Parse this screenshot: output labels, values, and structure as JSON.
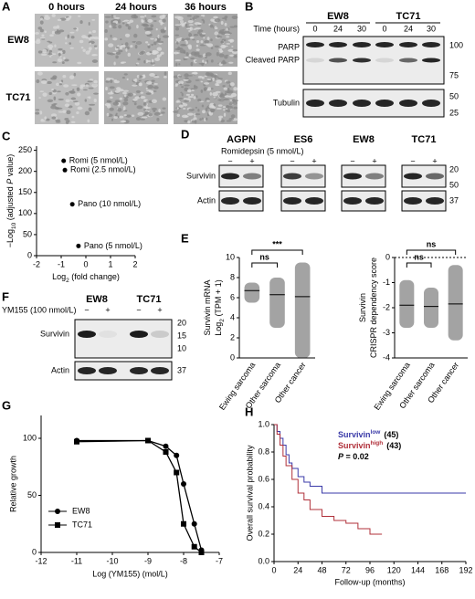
{
  "panel_labels": [
    "A",
    "B",
    "C",
    "D",
    "E",
    "F",
    "G",
    "H"
  ],
  "micrographs": {
    "columns": [
      "0 hours",
      "24 hours",
      "36 hours"
    ],
    "rows": [
      "EW8",
      "TC71"
    ]
  },
  "blot_b": {
    "cell_lines": [
      "EW8",
      "TC71"
    ],
    "time_label": "Time (hours)",
    "times": [
      "0",
      "24",
      "30",
      "0",
      "24",
      "30"
    ],
    "bands": [
      "PARP",
      "Cleaved PARP",
      "Tubulin"
    ],
    "markers": [
      "100",
      "75",
      "50",
      "25"
    ]
  },
  "blot_d": {
    "cell_lines": [
      "AGPN",
      "ES6",
      "EW8",
      "TC71"
    ],
    "treatment": "Romidepsin (5 nmol/L)",
    "signs": [
      "−",
      "+"
    ],
    "bands": [
      "Survivin",
      "Actin"
    ],
    "markers": [
      "20",
      "50",
      "37"
    ]
  },
  "blot_f": {
    "cell_lines": [
      "EW8",
      "TC71"
    ],
    "treatment": "YM155 (100 nmol/L)",
    "signs": [
      "−",
      "+"
    ],
    "bands": [
      "Survivin",
      "Actin"
    ],
    "markers": [
      "20",
      "15",
      "10",
      "37"
    ]
  },
  "chart_data": [
    {
      "type": "scatter",
      "y_label": [
        {
          "t": "−Log"
        },
        {
          "sub": "10"
        },
        {
          "t": " (adjusted "
        },
        {
          "i": "P"
        },
        {
          "t": " value)"
        }
      ],
      "x_label": [
        {
          "t": "Log"
        },
        {
          "sub": "2"
        },
        {
          "t": " (fold change)"
        }
      ],
      "x": [
        -0.9,
        -0.85,
        -0.55,
        -0.3
      ],
      "values": [
        225,
        203,
        122,
        23
      ],
      "point_labels": [
        "Romi (5 nmol/L)",
        "Romi (2.5 nmol/L)",
        "Pano (10 nmol/L)",
        "Pano (5 nmol/L)"
      ],
      "xlim": [
        -2,
        2
      ],
      "xticks": [
        -2,
        -1,
        0,
        1,
        2
      ],
      "ylim": [
        0,
        260
      ],
      "yticks": [
        0,
        50,
        100,
        150,
        200,
        250
      ],
      "color": "#000000"
    },
    {
      "type": "dot-summary",
      "y_label_lines": [
        [
          {
            "t": "Survivin mRNA"
          }
        ],
        [
          {
            "t": "Log"
          },
          {
            "sub": "2"
          },
          {
            "t": " (TPM + 1)"
          }
        ]
      ],
      "categories": [
        "Ewing sarcoma",
        "Other sarcoma",
        "Other cancer"
      ],
      "min": [
        5.5,
        3,
        0
      ],
      "max": [
        7.5,
        8,
        9.5
      ],
      "median": [
        6.7,
        6.3,
        6.1
      ],
      "ylim": [
        0,
        10
      ],
      "yticks": [
        0,
        2,
        4,
        6,
        8,
        10
      ],
      "annotations": [
        "ns",
        "***"
      ],
      "color": "#333333"
    },
    {
      "type": "dot-summary",
      "y_label_lines": [
        [
          {
            "t": "Survivin"
          }
        ],
        [
          {
            "t": "CRISPR dependency score"
          }
        ]
      ],
      "categories": [
        "Ewing sarcoma",
        "Other sarcoma",
        "Other cancer"
      ],
      "min": [
        -2.8,
        -2.8,
        -3.3
      ],
      "max": [
        -0.9,
        -1.2,
        -0.3
      ],
      "median": [
        -1.9,
        -1.95,
        -1.85
      ],
      "ylim": [
        -4,
        0
      ],
      "yticks": [
        -4,
        -3,
        -2,
        -1,
        0
      ],
      "ref_line": 0,
      "annotations": [
        "ns",
        "ns"
      ],
      "color": "#333333"
    },
    {
      "type": "line",
      "x_label": "Log (YM155) (mol/L)",
      "y_label": "Relative growth",
      "x": [
        -11,
        -9,
        -8.5,
        -8.2,
        -8,
        -7.7,
        -7.5
      ],
      "series": [
        {
          "name": "EW8",
          "marker": "circle",
          "color": "#000000",
          "values": [
            98,
            98,
            93,
            85,
            60,
            25,
            2
          ]
        },
        {
          "name": "TC71",
          "marker": "square",
          "color": "#000000",
          "values": [
            97,
            98,
            88,
            70,
            25,
            5,
            0
          ]
        }
      ],
      "xlim": [
        -12,
        -7
      ],
      "xticks": [
        -12,
        -11,
        -10,
        -9,
        -8,
        -7
      ],
      "ylim": [
        0,
        120
      ],
      "yticks": [
        0,
        50,
        100
      ]
    },
    {
      "type": "step",
      "x_label": "Follow-up (months)",
      "y_label": "Overall survival probability",
      "series": [
        {
          "name": "Survivin",
          "name_sup": "low",
          "n_label": "(45)",
          "color": "#3a3aa8",
          "x": [
            0,
            3,
            6,
            9,
            12,
            15,
            18,
            24,
            30,
            36,
            48,
            60,
            72,
            96,
            120,
            192
          ],
          "values": [
            1,
            0.95,
            0.9,
            0.85,
            0.78,
            0.72,
            0.68,
            0.62,
            0.58,
            0.55,
            0.5,
            0.5,
            0.5,
            0.5,
            0.5,
            0.5
          ]
        },
        {
          "name": "Survivin",
          "name_sup": "high",
          "n_label": "(43)",
          "color": "#b0303a",
          "x": [
            0,
            3,
            6,
            9,
            12,
            18,
            24,
            30,
            36,
            48,
            60,
            72,
            84,
            96,
            108
          ],
          "values": [
            1,
            0.93,
            0.85,
            0.77,
            0.7,
            0.6,
            0.5,
            0.45,
            0.38,
            0.33,
            0.3,
            0.28,
            0.24,
            0.2,
            0.2
          ]
        }
      ],
      "p_label": [
        {
          "i": "P"
        },
        {
          "t": " = 0.02"
        }
      ],
      "xlim": [
        0,
        192
      ],
      "xticks": [
        0,
        24,
        48,
        72,
        96,
        120,
        144,
        168,
        192
      ],
      "ylim": [
        0,
        1
      ],
      "yticks": [
        {
          "value": 0,
          "label": "0.0"
        },
        0.2,
        0.4,
        0.6,
        0.8,
        {
          "value": 1,
          "label": "1.0"
        }
      ]
    }
  ]
}
